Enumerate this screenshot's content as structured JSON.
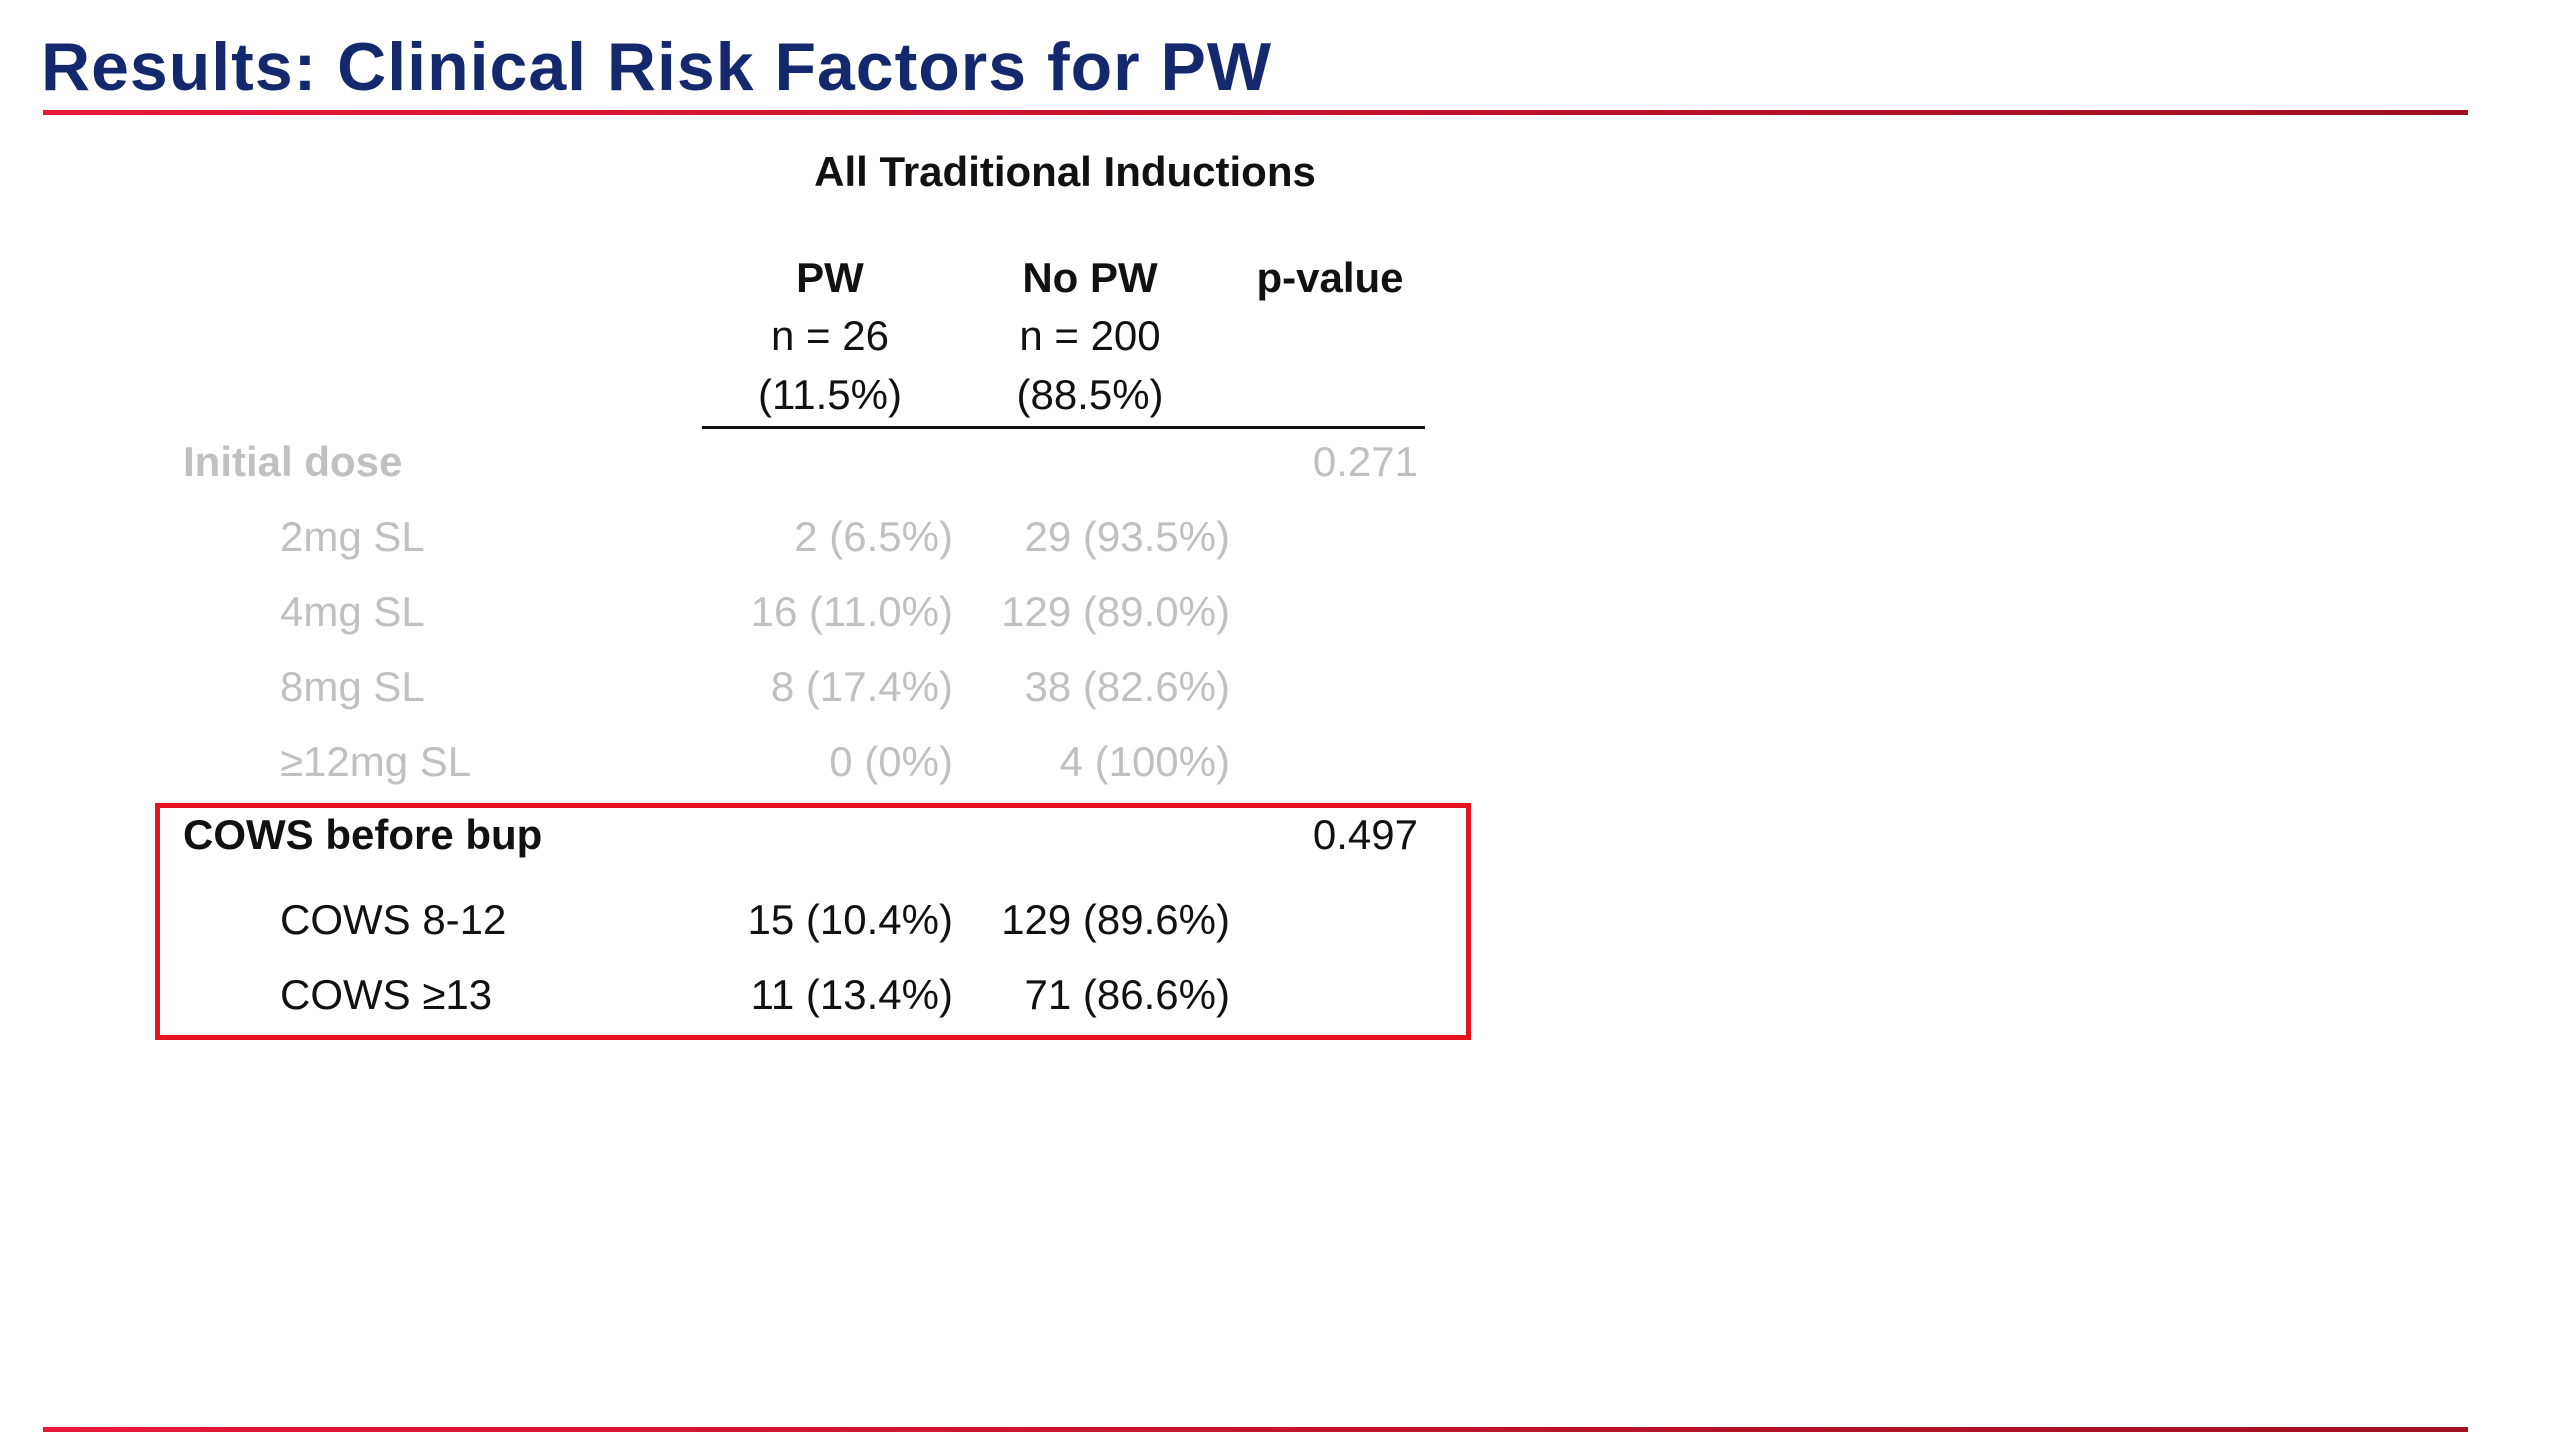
{
  "slide": {
    "title": "Results: Clinical Risk Factors for PW"
  },
  "table": {
    "caption": "All Traditional Inductions",
    "columns": {
      "pw": {
        "label": "PW",
        "n": "n = 26",
        "pct": "(11.5%)"
      },
      "no_pw": {
        "label": "No PW",
        "n": "n = 200",
        "pct": "(88.5%)"
      },
      "pvalue": {
        "label": "p-value"
      }
    },
    "initial_dose": {
      "label": "Initial dose",
      "pvalue": "0.271",
      "rows": [
        {
          "label": "2mg SL",
          "pw": "2 (6.5%)",
          "no_pw": "29 (93.5%)"
        },
        {
          "label": "4mg SL",
          "pw": "16 (11.0%)",
          "no_pw": "129 (89.0%)"
        },
        {
          "label": "8mg SL",
          "pw": "8 (17.4%)",
          "no_pw": "38 (82.6%)"
        },
        {
          "label": "≥12mg SL",
          "pw": "0 (0%)",
          "no_pw": "4 (100%)"
        }
      ]
    },
    "cows": {
      "label": "COWS before bup",
      "pvalue": "0.497",
      "rows": [
        {
          "label": "COWS 8-12",
          "pw": "15 (10.4%)",
          "no_pw": "129 (89.6%)"
        },
        {
          "label": "COWS ≥13",
          "pw": "11 (13.4%)",
          "no_pw": "71 (86.6%)"
        }
      ]
    }
  },
  "colors": {
    "title": "#14286e",
    "rule": "#c8102e",
    "highlight": "#e3141f",
    "dimmed_text": "#c0c0c0",
    "text": "#111111"
  }
}
